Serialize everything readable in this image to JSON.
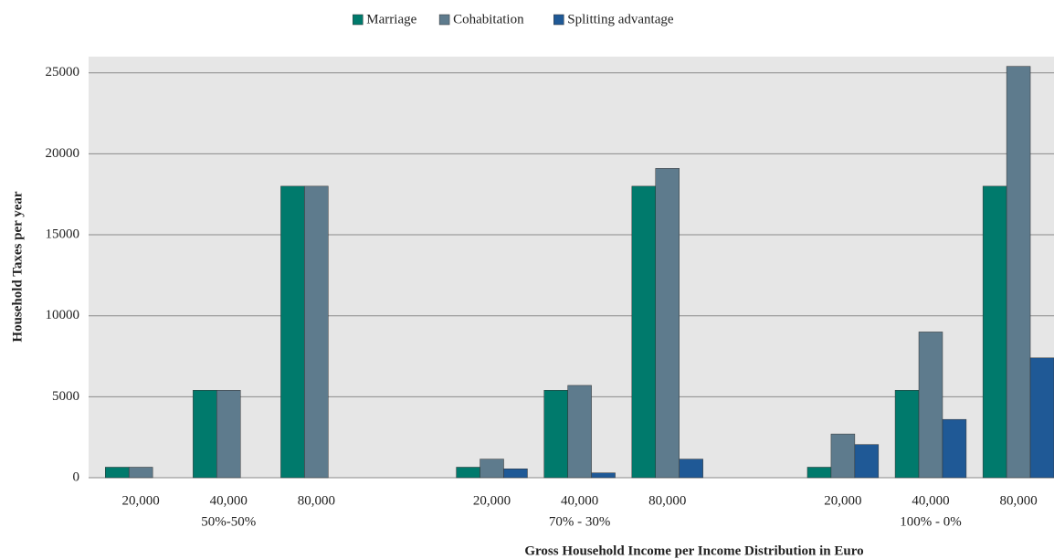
{
  "chart_data": {
    "type": "bar",
    "x_label": "Gross Household Income per Income Distribution in Euro",
    "y_label": "Household Taxes per year",
    "categories": [
      "20,000",
      "40,000",
      "80,000",
      null,
      "20,000",
      "40,000",
      "80,000",
      null,
      "20,000",
      "40,000",
      "80,000"
    ],
    "group_labels": [
      "50%-50%",
      "70% - 30%",
      "100% - 0%"
    ],
    "series": [
      {
        "name": "Marriage",
        "color": "#007a6c",
        "values": [
          650,
          5400,
          18000,
          null,
          650,
          5400,
          18000,
          null,
          650,
          5400,
          18000
        ]
      },
      {
        "name": "Cohabitation",
        "color": "#5e7b8d",
        "values": [
          650,
          5400,
          18000,
          null,
          1150,
          5700,
          19100,
          null,
          2700,
          9000,
          25400
        ]
      },
      {
        "name": "Splitting advantage",
        "color": "#1f5996",
        "values": [
          0,
          0,
          0,
          null,
          550,
          300,
          1150,
          null,
          2050,
          3600,
          7400
        ]
      }
    ],
    "ylim": [
      0,
      26000
    ],
    "yticks": [
      0,
      5000,
      10000,
      15000,
      20000,
      25000
    ],
    "grid": true,
    "legend": "top"
  }
}
